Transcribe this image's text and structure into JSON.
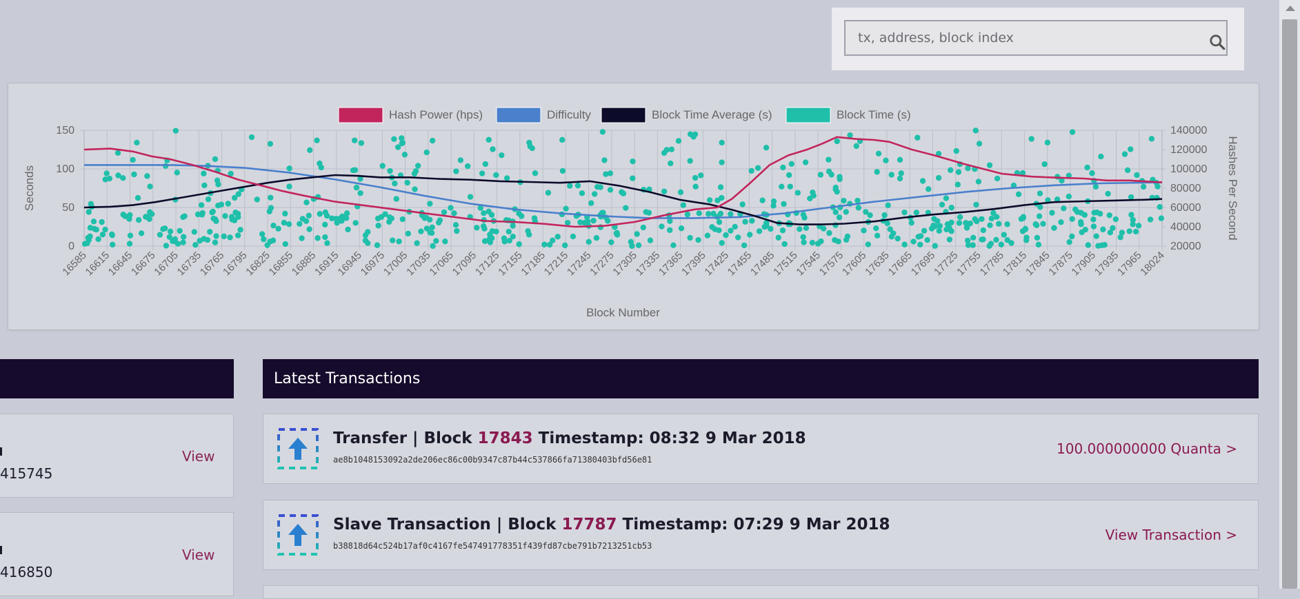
{
  "search": {
    "placeholder": "tx, address, block index"
  },
  "chart_data": {
    "type": "line",
    "legend": [
      "Hash Power (hps)",
      "Difficulty",
      "Block Time Average (s)",
      "Block Time (s)"
    ],
    "colors": {
      "hash_power": "#c2255c",
      "difficulty": "#4a80cc",
      "block_time_avg": "#0d0b2a",
      "block_time": "#1fbfaa"
    },
    "xlabel": "Block Number",
    "ylabel_left": "Seconds",
    "ylabel_right": "Hashes Per Second",
    "xlim": [
      16585,
      18024
    ],
    "ylim_left": [
      0,
      150
    ],
    "ylim_right": [
      20000,
      140000
    ],
    "y_ticks_left": [
      "0",
      "50",
      "100",
      "150"
    ],
    "y_ticks_right": [
      "20000",
      "40000",
      "60000",
      "80000",
      "100000",
      "120000",
      "140000"
    ],
    "x_ticks": [
      "16585",
      "16615",
      "16645",
      "16675",
      "16705",
      "16735",
      "16765",
      "16795",
      "16825",
      "16855",
      "16885",
      "16915",
      "16945",
      "16975",
      "17005",
      "17035",
      "17065",
      "17095",
      "17125",
      "17155",
      "17185",
      "17215",
      "17245",
      "17275",
      "17305",
      "17335",
      "17365",
      "17395",
      "17425",
      "17455",
      "17485",
      "17515",
      "17545",
      "17575",
      "17605",
      "17635",
      "17665",
      "17695",
      "17725",
      "17755",
      "17785",
      "17815",
      "17845",
      "17875",
      "17905",
      "17935",
      "17965",
      "18024"
    ],
    "series": [
      {
        "name": "Hash Power (hps)",
        "axis": "right",
        "x": [
          16585,
          16620,
          16650,
          16675,
          16700,
          16730,
          16760,
          16790,
          16820,
          16850,
          16880,
          16920,
          16960,
          17000,
          17040,
          17080,
          17120,
          17160,
          17200,
          17240,
          17280,
          17320,
          17360,
          17400,
          17430,
          17450,
          17475,
          17500,
          17525,
          17550,
          17570,
          17590,
          17615,
          17640,
          17660,
          17690,
          17720,
          17760,
          17790,
          17810,
          17850,
          17880,
          17920,
          17950,
          17980,
          18024
        ],
        "values": [
          120000,
          121000,
          118000,
          113000,
          110000,
          104000,
          97000,
          89000,
          83000,
          77000,
          72000,
          66000,
          62000,
          58000,
          54000,
          50000,
          46000,
          45000,
          43000,
          40000,
          41000,
          45000,
          52000,
          58000,
          60000,
          69000,
          86000,
          104000,
          114000,
          120000,
          126000,
          133000,
          131000,
          130000,
          128000,
          120000,
          114000,
          105000,
          99000,
          95000,
          92000,
          91000,
          90000,
          88000,
          88000,
          86000
        ]
      },
      {
        "name": "Difficulty",
        "axis": "right",
        "x": [
          16585,
          16650,
          16700,
          16750,
          16800,
          16860,
          16920,
          16980,
          17040,
          17100,
          17160,
          17220,
          17280,
          17340,
          17400,
          17460,
          17520,
          17580,
          17640,
          17700,
          17760,
          17820,
          17880,
          17940,
          18024
        ],
        "values": [
          104000,
          104000,
          104000,
          103000,
          101000,
          96000,
          89000,
          81000,
          72000,
          64000,
          58000,
          54000,
          51000,
          49000,
          49000,
          50000,
          54000,
          60000,
          66000,
          71000,
          76000,
          80000,
          83000,
          85000,
          86000
        ]
      },
      {
        "name": "Block Time Average (s)",
        "axis": "left",
        "x": [
          16585,
          16620,
          16650,
          16680,
          16710,
          16740,
          16770,
          16800,
          16830,
          16860,
          16890,
          16920,
          16950,
          16980,
          17020,
          17060,
          17100,
          17140,
          17180,
          17220,
          17260,
          17300,
          17340,
          17380,
          17420,
          17450,
          17480,
          17510,
          17540,
          17570,
          17600,
          17640,
          17680,
          17720,
          17760,
          17800,
          17840,
          17880,
          17920,
          17960,
          18000,
          18024
        ],
        "values": [
          50,
          51,
          53,
          57,
          62,
          67,
          72,
          77,
          82,
          86,
          89,
          92,
          91,
          89,
          89,
          87,
          86,
          84,
          83,
          82,
          84,
          78,
          70,
          60,
          54,
          47,
          39,
          30,
          28,
          28,
          29,
          32,
          37,
          41,
          44,
          48,
          53,
          57,
          58,
          59,
          60,
          61
        ]
      },
      {
        "name": "Block Time (s)",
        "axis": "left",
        "points": "scatter",
        "x_range": [
          16585,
          18024
        ],
        "count": 650,
        "value_range": [
          0,
          150
        ]
      }
    ]
  },
  "side": {
    "cards": [
      {
        "number": "415745",
        "link": "View"
      },
      {
        "number": "416850",
        "link": "View"
      }
    ]
  },
  "transactions": {
    "header": "Latest Transactions",
    "items": [
      {
        "title_prefix": "Transfer | Block",
        "block": "17843",
        "title_suffix": "Timestamp: 08:32 9 Mar 2018",
        "hash": "ae8b1048153092a2de206ec86c00b9347c87b44c537866fa71380403bfd56e81",
        "action": "100.000000000 Quanta >"
      },
      {
        "title_prefix": "Slave Transaction | Block",
        "block": "17787",
        "title_suffix": "Timestamp: 07:29 9 Mar 2018",
        "hash": "b38818d64c524b17af0c4167fe547491778351f439fd87cbe791b7213251cb53",
        "action": "View Transaction >"
      }
    ]
  }
}
